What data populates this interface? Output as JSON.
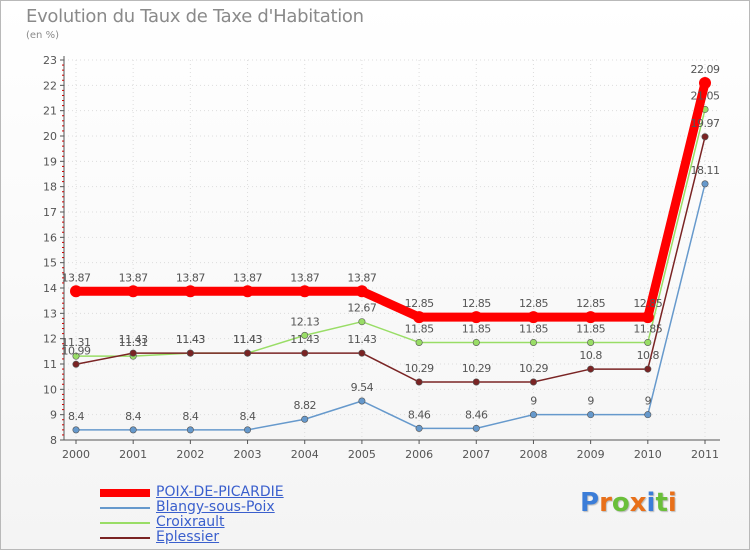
{
  "chart_data": {
    "type": "line",
    "title": "Evolution du Taux de Taxe d'Habitation",
    "subtitle": "(en %)",
    "categories": [
      "2000",
      "2001",
      "2002",
      "2003",
      "2004",
      "2005",
      "2006",
      "2007",
      "2008",
      "2009",
      "2010",
      "2011"
    ],
    "ylim": [
      8,
      23
    ],
    "yticks": [
      8,
      9,
      10,
      11,
      12,
      13,
      14,
      15,
      16,
      17,
      18,
      19,
      20,
      21,
      22,
      23
    ],
    "series": [
      {
        "name": "POIX-DE-PICARDIE",
        "color": "#ff0000",
        "values": [
          13.87,
          13.87,
          13.87,
          13.87,
          13.87,
          13.87,
          12.85,
          12.85,
          12.85,
          12.85,
          12.85,
          22.09
        ],
        "labels": [
          "13.87",
          "13.87",
          "13.87",
          "13.87",
          "13.87",
          "13.87",
          "12.85",
          "12.85",
          "12.85",
          "12.85",
          "12.85",
          "22.09"
        ]
      },
      {
        "name": "Blangy-sous-Poix",
        "color": "#6699cc",
        "values": [
          8.4,
          8.4,
          8.4,
          8.4,
          8.82,
          9.54,
          8.46,
          8.46,
          9,
          9,
          9,
          18.11
        ],
        "labels": [
          "8.4",
          "8.4",
          "8.4",
          "8.4",
          "8.82",
          "9.54",
          "8.46",
          "8.46",
          "9",
          "9",
          "9",
          "18.11"
        ]
      },
      {
        "name": "Croixrault",
        "color": "#99dd66",
        "values": [
          11.31,
          11.31,
          11.43,
          11.43,
          12.13,
          12.67,
          11.85,
          11.85,
          11.85,
          11.85,
          11.85,
          21.05
        ],
        "labels": [
          "11.31",
          "11.31",
          "11.43",
          "11.43",
          "12.13",
          "12.67",
          "11.85",
          "11.85",
          "11.85",
          "11.85",
          "11.85",
          "21.05"
        ]
      },
      {
        "name": "Eplessier",
        "color": "#7a2424",
        "values": [
          10.99,
          11.43,
          11.43,
          11.43,
          11.43,
          11.43,
          10.29,
          10.29,
          10.29,
          10.8,
          10.8,
          19.97
        ],
        "labels": [
          "10.99",
          "11.43",
          "11.43",
          "11.43",
          "11.43",
          "11.43",
          "10.29",
          "10.29",
          "10.29",
          "10.8",
          "10.8",
          "19.97"
        ]
      }
    ]
  },
  "legend": {
    "items": [
      {
        "label": "POIX-DE-PICARDIE",
        "color": "#ff0000"
      },
      {
        "label": "Blangy-sous-Poix",
        "color": "#6699cc"
      },
      {
        "label": "Croixrault",
        "color": "#99dd66"
      },
      {
        "label": "Eplessier",
        "color": "#7a2424"
      }
    ]
  },
  "logo": {
    "letters": [
      "P",
      "r",
      "o",
      "x",
      "i",
      "t",
      "i"
    ],
    "colors": [
      "#3b7dd8",
      "#e8701a",
      "#6abf3a",
      "#e8701a",
      "#3b7dd8",
      "#6abf3a",
      "#e8701a"
    ]
  }
}
